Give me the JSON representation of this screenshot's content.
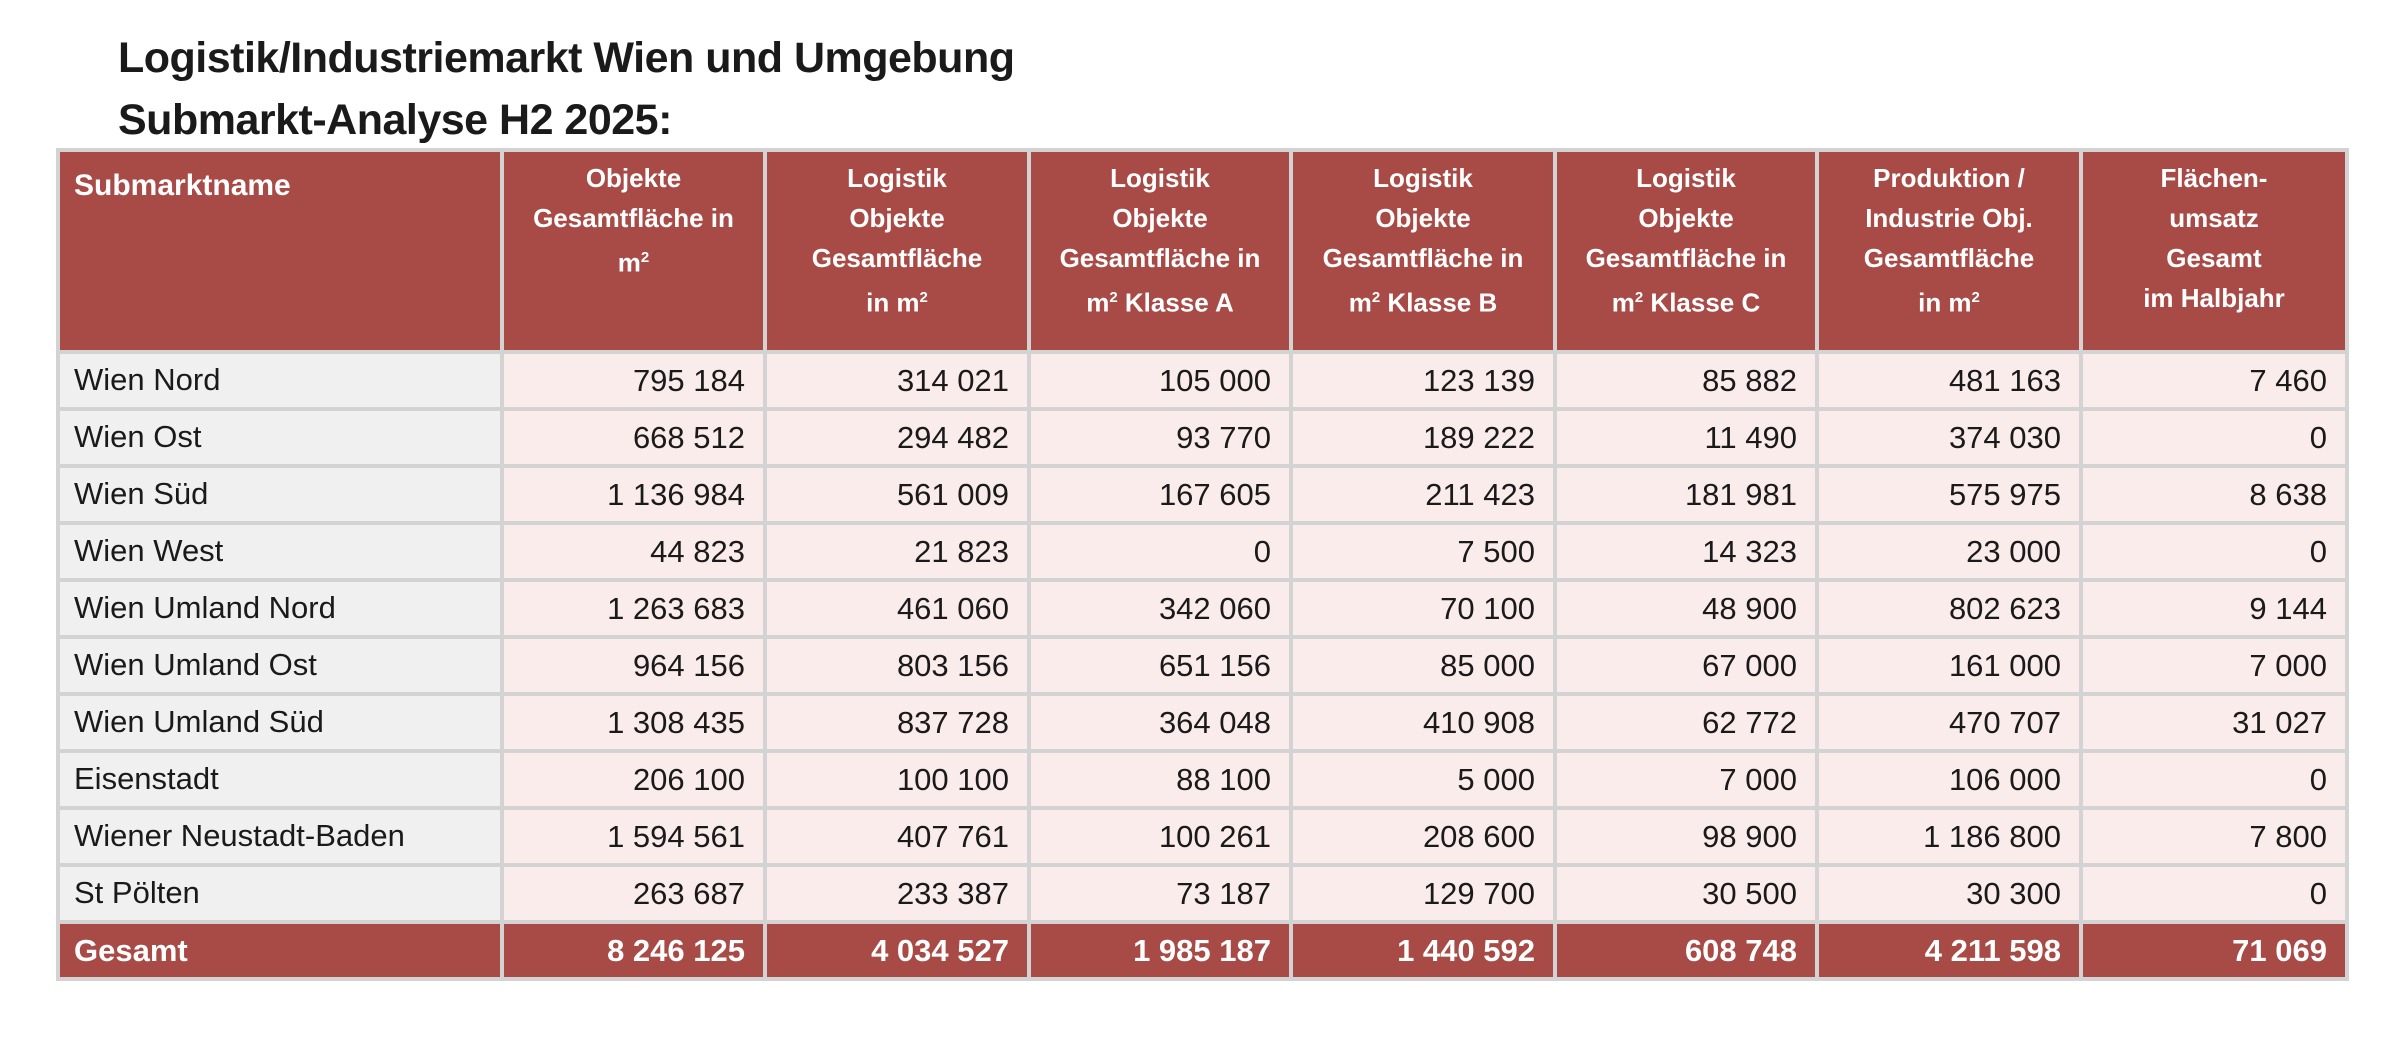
{
  "title": {
    "line1": "Logistik/Industriemarkt Wien und Umgebung",
    "line2": "Submarkt-Analyse H2 2025:"
  },
  "table": {
    "headers": [
      "Submarktname",
      "Objekte Gesamtfläche in m²",
      "Logistik Objekte Gesamtfläche in m²",
      "Logistik Objekte Gesamtfläche in m² Klasse A",
      "Logistik Objekte Gesamtfläche in m² Klasse B",
      "Logistik Objekte Gesamtfläche in m² Klasse C",
      "Produktion / Industrie Obj. Gesamtfläche in m²",
      "Flächen-umsatz Gesamt im Halbjahr"
    ],
    "header_lines": [
      [
        "Submarktname"
      ],
      [
        "Objekte",
        "Gesamtfläche in",
        "m²"
      ],
      [
        "Logistik",
        "Objekte",
        "Gesamtfläche",
        "in m²"
      ],
      [
        "Logistik",
        "Objekte",
        "Gesamtfläche in",
        "m² Klasse A"
      ],
      [
        "Logistik",
        "Objekte",
        "Gesamtfläche in",
        "m² Klasse B"
      ],
      [
        "Logistik",
        "Objekte",
        "Gesamtfläche in",
        "m² Klasse C"
      ],
      [
        "Produktion /",
        "Industrie Obj.",
        "Gesamtfläche",
        "in m²"
      ],
      [
        "Flächen-",
        "umsatz",
        "Gesamt",
        "im Halbjahr"
      ]
    ],
    "rows": [
      [
        "Wien Nord",
        "795 184",
        "314 021",
        "105 000",
        "123 139",
        "85 882",
        "481 163",
        "7 460"
      ],
      [
        "Wien Ost",
        "668 512",
        "294 482",
        "93 770",
        "189 222",
        "11 490",
        "374 030",
        "0"
      ],
      [
        "Wien Süd",
        "1 136 984",
        "561 009",
        "167 605",
        "211 423",
        "181 981",
        "575 975",
        "8 638"
      ],
      [
        "Wien West",
        "44 823",
        "21 823",
        "0",
        "7 500",
        "14 323",
        "23 000",
        "0"
      ],
      [
        "Wien Umland Nord",
        "1 263 683",
        "461 060",
        "342 060",
        "70 100",
        "48 900",
        "802 623",
        "9 144"
      ],
      [
        "Wien Umland Ost",
        "964 156",
        "803 156",
        "651 156",
        "85 000",
        "67 000",
        "161 000",
        "7 000"
      ],
      [
        "Wien Umland Süd",
        "1 308 435",
        "837 728",
        "364 048",
        "410 908",
        "62 772",
        "470 707",
        "31 027"
      ],
      [
        "Eisenstadt",
        "206 100",
        "100 100",
        "88 100",
        "5 000",
        "7 000",
        "106 000",
        "0"
      ],
      [
        "Wiener Neustadt-Baden",
        "1 594 561",
        "407 761",
        "100 261",
        "208 600",
        "98 900",
        "1 186 800",
        "7 800"
      ],
      [
        "St Pölten",
        "263 687",
        "233 387",
        "73 187",
        "129 700",
        "30 500",
        "30 300",
        "0"
      ]
    ],
    "total": [
      "Gesamt",
      "8 246 125",
      "4 034 527",
      "1 985 187",
      "1 440 592",
      "608 748",
      "4 211 598",
      "71 069"
    ]
  },
  "colors": {
    "header_bg": "#a84a46",
    "cell_bg": "#f9ecea",
    "name_bg": "#f0f0f0",
    "border": "#d3d3d3"
  }
}
